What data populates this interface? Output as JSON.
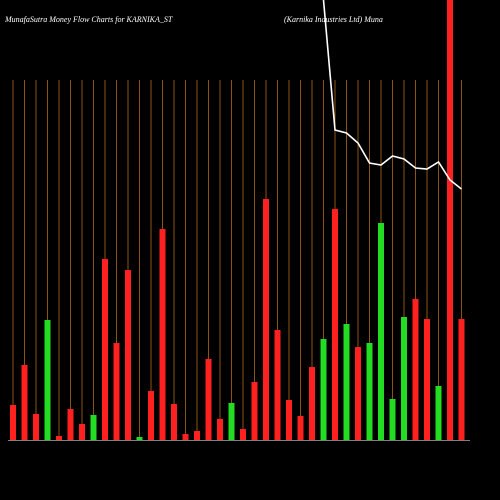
{
  "chart_data": {
    "type": "bar",
    "title": "MunafaSutra  Money Flow  Charts for KARNIKA_ST",
    "subtitle": "(Karnika  Industries Ltd) Muna",
    "ylim": [
      0,
      440
    ],
    "y2lim": [
      0,
      440
    ],
    "grid": true,
    "grid_color": "#c87a1e",
    "series": [
      {
        "type": "bar",
        "colors": [
          "#ff2020",
          "#ff2020",
          "#ff2020",
          "#22dd22",
          "#ff2020",
          "#ff2020",
          "#ff2020",
          "#22dd22",
          "#ff2020",
          "#ff2020",
          "#ff2020",
          "#22dd22",
          "#ff2020",
          "#ff2020",
          "#ff2020",
          "#ff2020",
          "#ff2020",
          "#ff2020",
          "#ff2020",
          "#22dd22",
          "#ff2020",
          "#ff2020",
          "#ff2020",
          "#ff2020",
          "#ff2020",
          "#ff2020",
          "#ff2020",
          "#22dd22",
          "#ff2020",
          "#22dd22",
          "#ff2020",
          "#22dd22",
          "#22dd22",
          "#22dd22",
          "#22dd22",
          "#ff2020",
          "#ff2020",
          "#22dd22",
          "#ff2020",
          "#ff2020"
        ],
        "values": [
          35,
          75,
          26,
          120,
          4,
          31,
          16,
          25,
          181,
          97,
          170,
          3,
          49,
          211,
          36,
          6,
          9,
          81,
          21,
          37,
          11,
          58,
          241,
          110,
          40,
          24,
          73,
          101,
          231,
          116,
          93,
          97,
          217,
          41,
          123,
          141,
          121,
          54,
          440,
          121
        ]
      },
      {
        "type": "line",
        "axis": "y2",
        "color": "#ffffff",
        "values": [
          null,
          null,
          null,
          null,
          null,
          null,
          null,
          null,
          null,
          null,
          null,
          null,
          null,
          null,
          null,
          null,
          null,
          null,
          null,
          null,
          null,
          null,
          null,
          null,
          null,
          null,
          null,
          440,
          310,
          307,
          297,
          277,
          275,
          284,
          281,
          272,
          271,
          278,
          260,
          251
        ]
      }
    ]
  }
}
